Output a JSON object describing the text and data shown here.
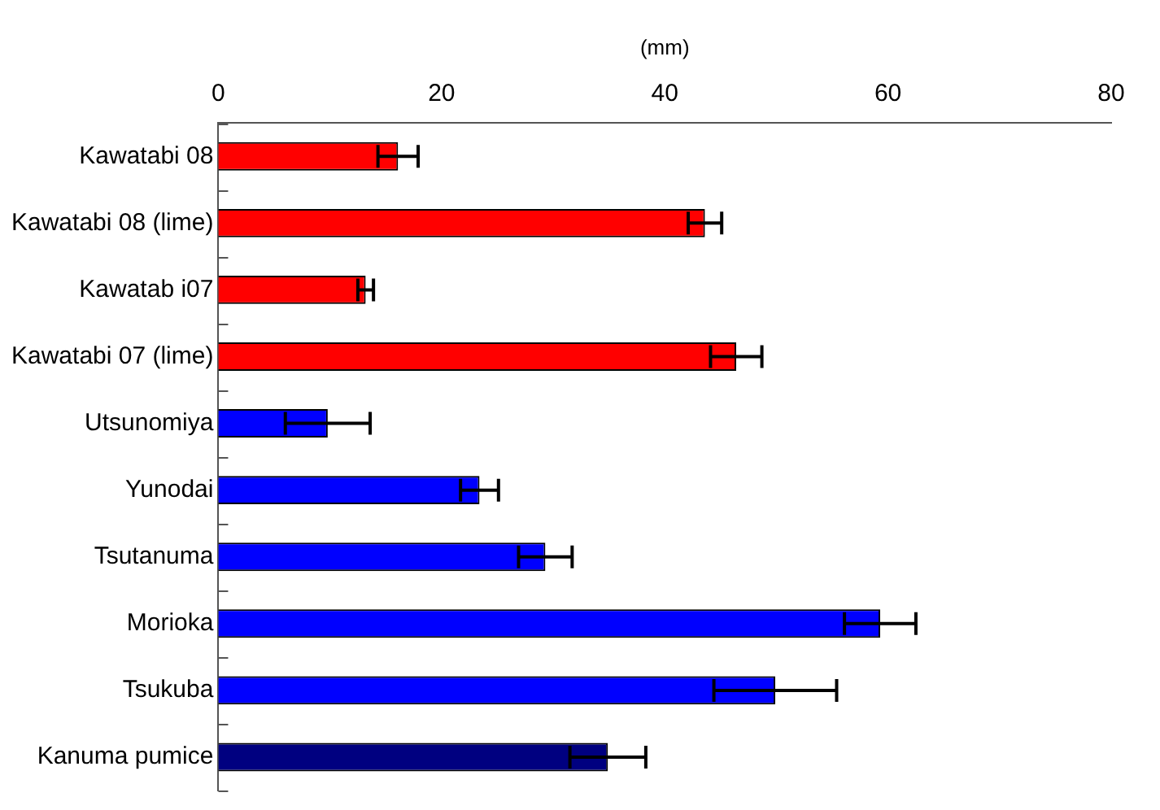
{
  "chart_data": {
    "type": "bar",
    "orientation": "horizontal",
    "xlabel": "(mm)",
    "categories": [
      "Kawatabi 08",
      "Kawatabi 08 (lime)",
      "Kawatab i07",
      "Kawatabi 07 (lime)",
      "Utsunomiya",
      "Yunodai",
      "Tsutanuma",
      "Morioka",
      "Tsukuba",
      "Kanuma pumice"
    ],
    "values": [
      16.1,
      43.6,
      13.2,
      46.4,
      9.8,
      23.4,
      29.3,
      59.3,
      49.9,
      34.9
    ],
    "errors": [
      1.8,
      1.5,
      0.7,
      2.3,
      3.8,
      1.7,
      2.4,
      3.2,
      5.5,
      3.4
    ],
    "colors": [
      "#ff0000",
      "#ff0000",
      "#ff0000",
      "#ff0000",
      "#0000ff",
      "#0000ff",
      "#0000ff",
      "#0000ff",
      "#0000ff",
      "#000080"
    ],
    "xlim": [
      0,
      80
    ],
    "xticks": [
      0,
      20,
      40,
      60,
      80
    ],
    "grid": false,
    "legend": false
  }
}
